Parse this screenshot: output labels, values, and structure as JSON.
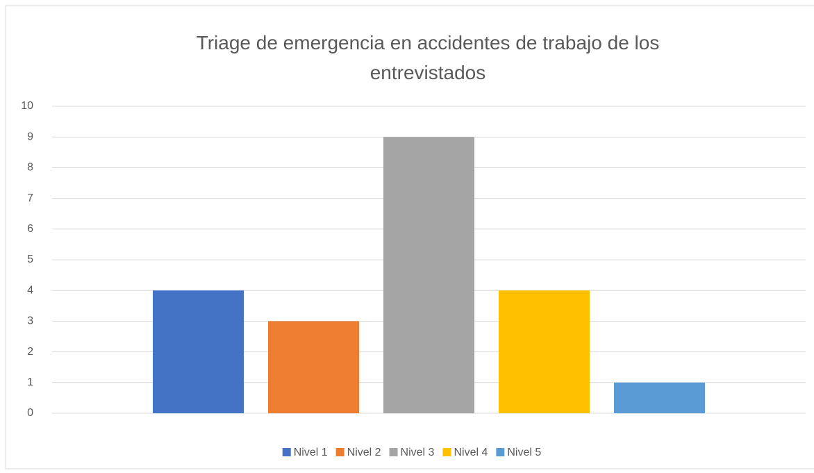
{
  "chart_data": {
    "type": "bar",
    "title": "Triage de emergencia en accidentes de trabajo de los entrevistados",
    "categories": [
      null
    ],
    "series": [
      {
        "name": "Nivel 1",
        "color": "#4472c4",
        "values": [
          4
        ]
      },
      {
        "name": "Nivel 2",
        "color": "#ed7d31",
        "values": [
          3
        ]
      },
      {
        "name": "Nivel 3",
        "color": "#a5a5a5",
        "values": [
          9
        ]
      },
      {
        "name": "Nivel 4",
        "color": "#ffc000",
        "values": [
          4
        ]
      },
      {
        "name": "Nivel 5",
        "color": "#5b9bd5",
        "values": [
          1
        ]
      }
    ],
    "ylim": [
      0,
      10
    ],
    "yticks": [
      0,
      1,
      2,
      3,
      4,
      5,
      6,
      7,
      8,
      9,
      10
    ],
    "grid": true,
    "legend": "bottom"
  }
}
